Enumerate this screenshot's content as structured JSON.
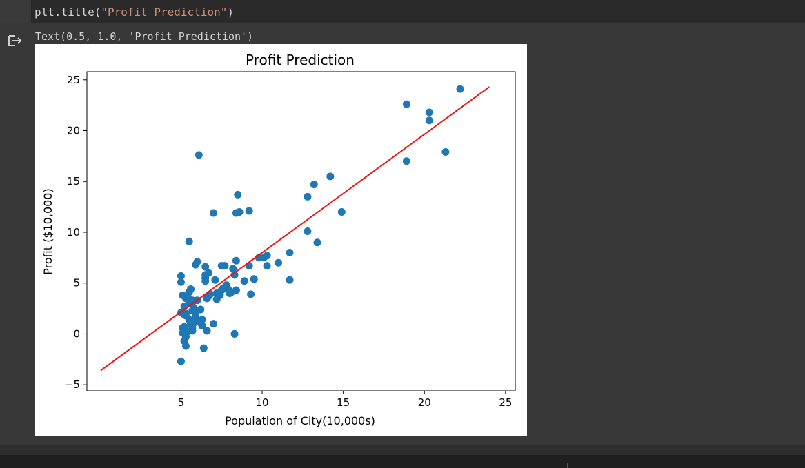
{
  "code_cell": {
    "prefix": "plt.title(",
    "string": "\"Profit Prediction\"",
    "suffix": ")"
  },
  "output": {
    "text": "Text(0.5, 1.0, 'Profit Prediction')",
    "icon": "output-redirect-icon"
  },
  "chart_data": {
    "type": "scatter",
    "title": "Profit Prediction",
    "xlabel": "Population of City(10,000s)",
    "ylabel": "Profit ($10,000)",
    "xlim": [
      -0.8,
      25.6
    ],
    "ylim": [
      -5.6,
      25.8
    ],
    "xticks": [
      5,
      10,
      15,
      20,
      25
    ],
    "yticks": [
      -5,
      0,
      5,
      10,
      15,
      20,
      25
    ],
    "xtick_labels": [
      "5",
      "10",
      "15",
      "20",
      "25"
    ],
    "ytick_labels": [
      "−5",
      "0",
      "5",
      "10",
      "15",
      "20",
      "25"
    ],
    "grid": false,
    "colors": {
      "points": "#1f77b4",
      "line": "#ee1111"
    },
    "series": [
      {
        "type": "scatter",
        "points": [
          [
            6.1,
            17.6
          ],
          [
            5.5,
            9.1
          ],
          [
            8.5,
            13.7
          ],
          [
            7.0,
            11.9
          ],
          [
            5.9,
            6.8
          ],
          [
            8.4,
            11.9
          ],
          [
            7.5,
            4.3
          ],
          [
            8.6,
            12.0
          ],
          [
            6.5,
            6.6
          ],
          [
            5.1,
            3.8
          ],
          [
            5.7,
            3.3
          ],
          [
            14.2,
            15.5
          ],
          [
            5.7,
            3.1
          ],
          [
            6.0,
            3.3
          ],
          [
            6.5,
            5.5
          ],
          [
            5.1,
            0.1
          ],
          [
            5.2,
            0.7
          ],
          [
            5.5,
            3.0
          ],
          [
            5.3,
            2.0
          ],
          [
            5.8,
            2.5
          ],
          [
            7.1,
            5.3
          ],
          [
            5.8,
            1.1
          ],
          [
            6.5,
            5.8
          ],
          [
            5.2,
            -0.7
          ],
          [
            6.8,
            3.9
          ],
          [
            5.0,
            5.7
          ],
          [
            5.6,
            4.4
          ],
          [
            5.1,
            0.6
          ],
          [
            5.5,
            4.1
          ],
          [
            5.3,
            -1.2
          ],
          [
            6.7,
            6.0
          ],
          [
            6.5,
            5.2
          ],
          [
            5.3,
            1.8
          ],
          [
            6.7,
            3.7
          ],
          [
            6.3,
            0.8
          ],
          [
            5.7,
            0.3
          ],
          [
            5.3,
            3.5
          ],
          [
            5.7,
            0.6
          ],
          [
            5.3,
            -0.3
          ],
          [
            5.6,
            0.9
          ],
          [
            5.7,
            2.3
          ],
          [
            5.5,
            3.4
          ],
          [
            6.3,
            1.4
          ],
          [
            5.2,
            2.7
          ],
          [
            5.6,
            1.0
          ],
          [
            5.4,
            0.2
          ],
          [
            5.2,
            1.9
          ],
          [
            7.2,
            4.0
          ],
          [
            7.5,
            6.7
          ],
          [
            7.2,
            3.4
          ],
          [
            6.4,
            -1.4
          ],
          [
            6.6,
            0.3
          ],
          [
            6.2,
            1.1
          ],
          [
            5.9,
            2.0
          ],
          [
            8.3,
            0.0
          ],
          [
            7.0,
            1.0
          ],
          [
            5.0,
            -2.7
          ],
          [
            6.0,
            7.1
          ],
          [
            5.0,
            5.1
          ],
          [
            8.2,
            6.4
          ],
          [
            8.4,
            7.2
          ],
          [
            7.7,
            6.7
          ],
          [
            8.3,
            5.8
          ],
          [
            8.4,
            4.3
          ],
          [
            7.9,
            4.4
          ],
          [
            7.8,
            4.8
          ],
          [
            8.9,
            5.2
          ],
          [
            8.1,
            4.1
          ],
          [
            9.2,
            6.7
          ],
          [
            9.5,
            5.4
          ],
          [
            9.3,
            3.9
          ],
          [
            9.2,
            12.1
          ],
          [
            7.6,
            4.5
          ],
          [
            7.4,
            3.8
          ],
          [
            10.1,
            7.5
          ],
          [
            10.3,
            7.7
          ],
          [
            10.3,
            6.7
          ],
          [
            9.8,
            7.5
          ],
          [
            11.0,
            7.0
          ],
          [
            11.7,
            8.0
          ],
          [
            11.7,
            5.3
          ],
          [
            12.8,
            13.5
          ],
          [
            12.8,
            10.1
          ],
          [
            13.2,
            14.7
          ],
          [
            13.4,
            9.0
          ],
          [
            14.9,
            12.0
          ],
          [
            18.9,
            22.6
          ],
          [
            18.9,
            17.0
          ],
          [
            20.3,
            21.8
          ],
          [
            20.3,
            21.0
          ],
          [
            21.3,
            17.9
          ],
          [
            22.2,
            24.1
          ],
          [
            8.0,
            4.0
          ],
          [
            6.6,
            3.5
          ],
          [
            5.9,
            1.6
          ],
          [
            6.2,
            2.4
          ],
          [
            5.0,
            2.1
          ],
          [
            5.5,
            1.4
          ]
        ]
      },
      {
        "type": "line",
        "x": [
          0.05,
          24.0
        ],
        "y": [
          -3.6,
          24.3
        ]
      }
    ]
  }
}
